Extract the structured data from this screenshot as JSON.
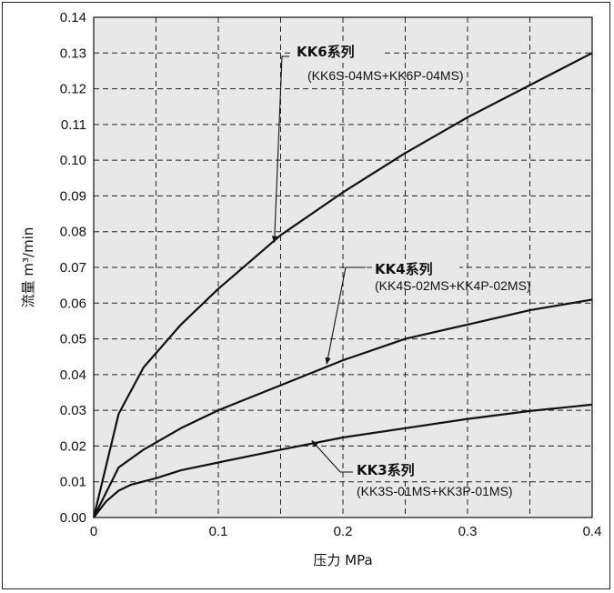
{
  "chart_data": {
    "type": "line",
    "xlabel": "压力 MPa",
    "ylabel": "流量 m³/min",
    "xlim": [
      0,
      0.4
    ],
    "ylim": [
      0,
      0.14
    ],
    "x_ticks": [
      0,
      0.1,
      0.2,
      0.3,
      0.4
    ],
    "x_tick_labels": [
      "0",
      "0.1",
      "0.2",
      "0.3",
      "0.4"
    ],
    "y_ticks": [
      0,
      0.01,
      0.02,
      0.03,
      0.04,
      0.05,
      0.06,
      0.07,
      0.08,
      0.09,
      0.1,
      0.11,
      0.12,
      0.13,
      0.14
    ],
    "y_tick_labels": [
      "0.00",
      "0.01",
      "0.02",
      "0.03",
      "0.04",
      "0.05",
      "0.06",
      "0.07",
      "0.08",
      "0.09",
      "0.10",
      "0.11",
      "0.12",
      "0.13",
      "0.14"
    ],
    "grid": "dashed",
    "series": [
      {
        "name": "KK6系列",
        "x": [
          0,
          0.02,
          0.04,
          0.07,
          0.1,
          0.15,
          0.2,
          0.25,
          0.3,
          0.35,
          0.4
        ],
        "y": [
          0,
          0.029,
          0.042,
          0.054,
          0.064,
          0.079,
          0.091,
          0.102,
          0.112,
          0.121,
          0.13
        ]
      },
      {
        "name": "KK4系列",
        "x": [
          0,
          0.02,
          0.04,
          0.07,
          0.1,
          0.15,
          0.2,
          0.25,
          0.3,
          0.35,
          0.4
        ],
        "y": [
          0,
          0.014,
          0.019,
          0.025,
          0.03,
          0.037,
          0.044,
          0.05,
          0.054,
          0.058,
          0.061
        ]
      },
      {
        "name": "KK3系列",
        "x": [
          0,
          0.01,
          0.02,
          0.03,
          0.05,
          0.07,
          0.1,
          0.15,
          0.2,
          0.25,
          0.3,
          0.35,
          0.4
        ],
        "y": [
          0,
          0.0045,
          0.0075,
          0.0092,
          0.011,
          0.0132,
          0.0154,
          0.019,
          0.0224,
          0.025,
          0.0276,
          0.0298,
          0.0316
        ]
      }
    ],
    "annotations": [
      {
        "title": "KK6系列",
        "subtitle": "(KK6S-04MS+KK6P-04MS)",
        "point": [
          0.145,
          0.077
        ]
      },
      {
        "title": "KK4系列",
        "subtitle": "(KK4S-02MS+KK4P-02MS)",
        "point": [
          0.187,
          0.043
        ]
      },
      {
        "title": "KK3系列",
        "subtitle": "(KK3S-01MS+KK3P-01MS)",
        "point": [
          0.175,
          0.0215
        ]
      }
    ],
    "colors": {
      "plot_background": "#e8e8e8",
      "line": "#111111",
      "grid": "#222222"
    }
  }
}
